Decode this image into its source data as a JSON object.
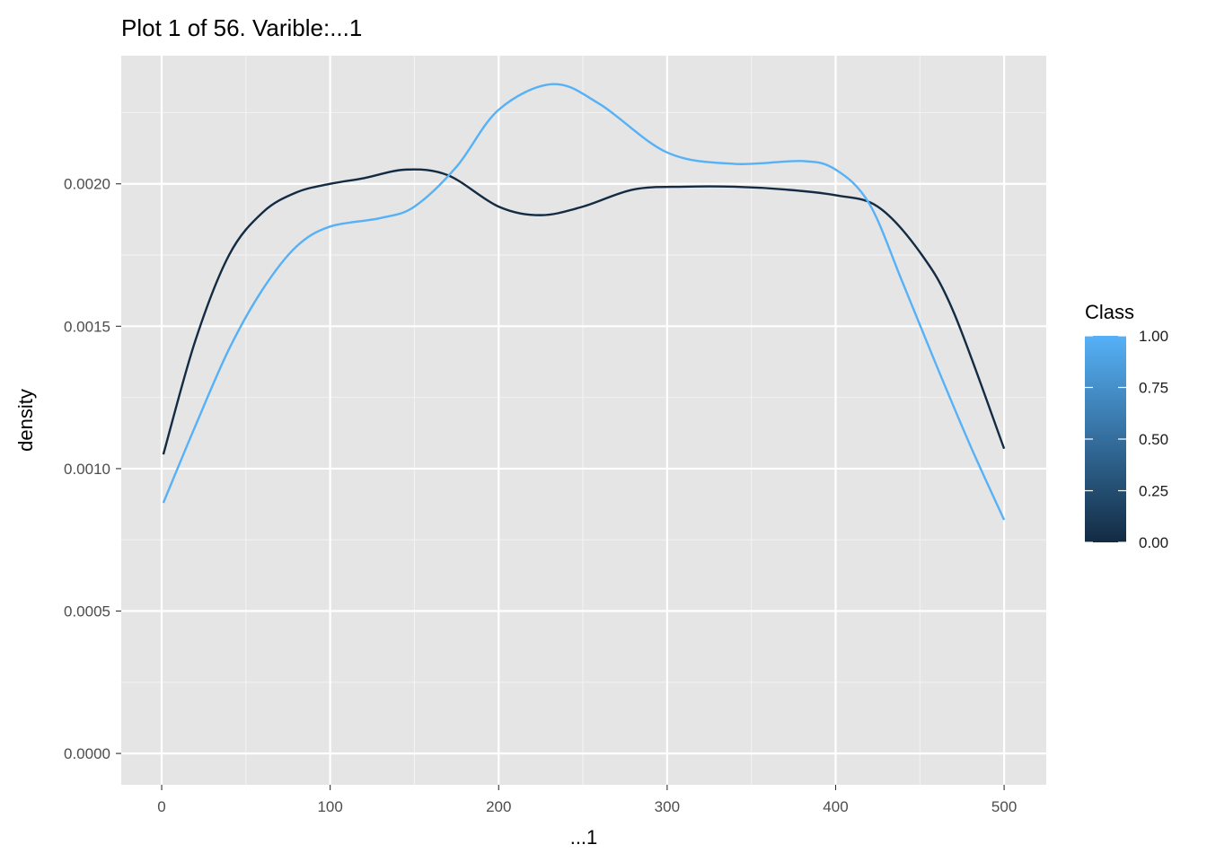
{
  "chart_data": {
    "type": "line",
    "title": "Plot 1 of 56. Varible:...1",
    "xlabel": "...1",
    "ylabel": "density",
    "xlim": [
      -24,
      525
    ],
    "ylim": [
      -0.00011,
      0.00245
    ],
    "x_ticks": [
      0,
      100,
      200,
      300,
      400,
      500
    ],
    "x_tick_labels": [
      "0",
      "100",
      "200",
      "300",
      "400",
      "500"
    ],
    "y_ticks": [
      0,
      0.0005,
      0.001,
      0.0015,
      0.002
    ],
    "y_tick_labels": [
      "0.0000",
      "0.0005",
      "0.0010",
      "0.0015",
      "0.0020"
    ],
    "grid": true,
    "background": "#e5e5e5",
    "legend": {
      "title": "Class",
      "position": "right",
      "type": "colorbar",
      "low_color": "#132b43",
      "high_color": "#56b1f7",
      "tick_values": [
        0,
        0.25,
        0.5,
        0.75,
        1
      ],
      "tick_labels": [
        "0.00",
        "0.25",
        "0.50",
        "0.75",
        "1.00"
      ]
    },
    "series": [
      {
        "color": "#132b43",
        "x": [
          1,
          20,
          40,
          60,
          80,
          100,
          120,
          145,
          170,
          200,
          225,
          250,
          280,
          310,
          340,
          370,
          400,
          425,
          450,
          470,
          500
        ],
        "y": [
          0.00105,
          0.00145,
          0.00175,
          0.0019,
          0.00197,
          0.002,
          0.00202,
          0.00205,
          0.00203,
          0.00192,
          0.00189,
          0.00192,
          0.00198,
          0.00199,
          0.00199,
          0.00198,
          0.00196,
          0.00192,
          0.00176,
          0.00155,
          0.00107
        ]
      },
      {
        "color": "#56b1f7",
        "x": [
          1,
          20,
          40,
          60,
          80,
          100,
          130,
          150,
          175,
          200,
          232,
          260,
          300,
          340,
          380,
          400,
          420,
          440,
          460,
          480,
          500
        ],
        "y": [
          0.00088,
          0.00115,
          0.00142,
          0.00163,
          0.00178,
          0.00185,
          0.00188,
          0.00192,
          0.00206,
          0.00226,
          0.00235,
          0.00228,
          0.00211,
          0.00207,
          0.00208,
          0.00205,
          0.00193,
          0.00165,
          0.00136,
          0.00108,
          0.00082
        ]
      }
    ]
  }
}
